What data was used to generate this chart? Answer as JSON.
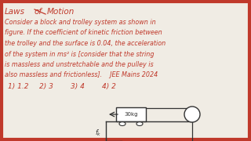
{
  "bg_color": "#f0ece4",
  "text_color": "#c0392b",
  "border_color": "#c0392b",
  "diagram_color": "#333333",
  "title_line1": "Laws",
  "title_of": "of",
  "title_line2": "Motion",
  "body_lines": [
    "Consider a block and trolley system as shown in",
    "figure. If the coefficient of kinetic friction between",
    "the trolley and the surface is 0.04, the acceleration",
    "of the system in ms² is [consider that the string",
    "is massless and unstretchable and the pulley is",
    "also massless and frictionless].    JEE Mains 2024"
  ],
  "options": [
    "1) 1.2",
    "2) 3",
    "3) 4",
    "4) 2"
  ],
  "block_label": "30kg",
  "fk_label": "fk"
}
